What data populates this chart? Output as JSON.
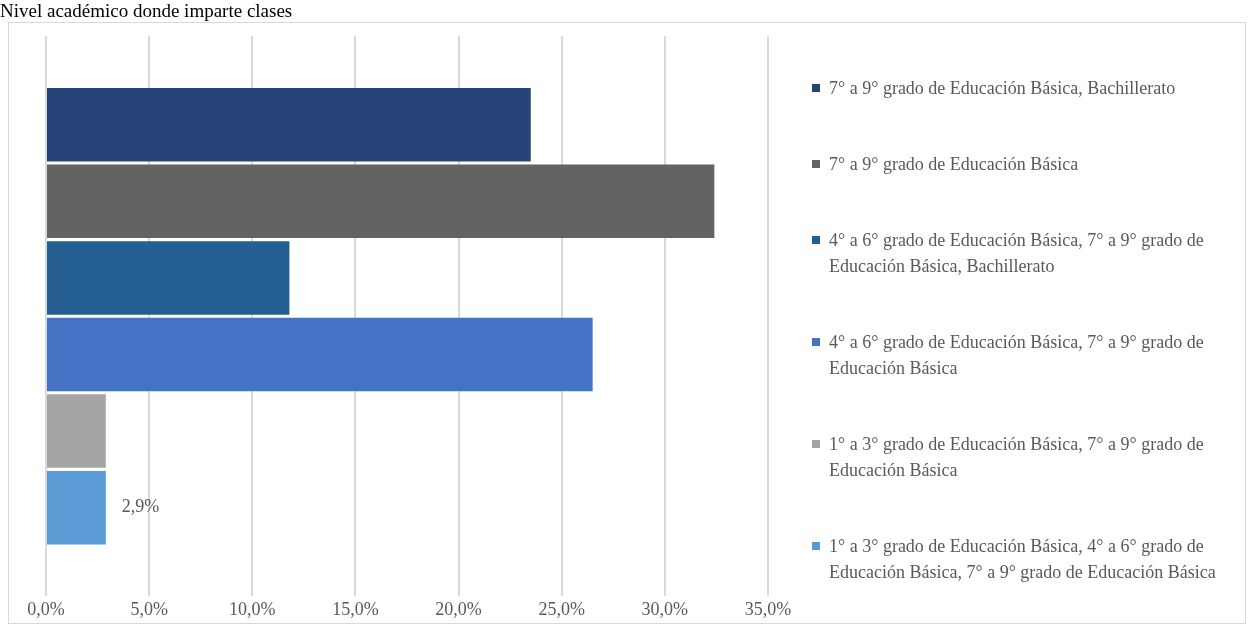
{
  "chart_data": {
    "type": "bar",
    "title": "Nivel académico donde imparte clases",
    "orientation": "horizontal",
    "categories": [
      null
    ],
    "series": [
      {
        "name": "7° a 9° grado de Educación Básica, Bachillerato",
        "color": "#264478",
        "values": [
          23.5
        ]
      },
      {
        "name": "7° a 9° grado de Educación Básica",
        "color": "#636363",
        "values": [
          32.4
        ]
      },
      {
        "name": "4° a 6° grado de Educación Básica, 7° a 9° grado de Educación Básica, Bachillerato",
        "color": "#255e91",
        "values": [
          11.8
        ]
      },
      {
        "name": "4° a 6° grado de Educación Básica, 7° a 9° grado de Educación Básica",
        "color": "#4472c4",
        "values": [
          26.5
        ]
      },
      {
        "name": "1° a 3° grado de Educación Básica, 7° a 9° grado de Educación Básica",
        "color": "#a5a5a5",
        "values": [
          2.9
        ]
      },
      {
        "name": "1° a 3° grado de Educación Básica, 4° a 6° grado de Educación Básica, 7° a 9° grado de Educación Básica",
        "color": "#5b9bd5",
        "values": [
          2.9
        ],
        "value_labels": [
          "2,9%"
        ]
      }
    ],
    "xlim": [
      0,
      35
    ],
    "xticks": [
      {
        "value": 0,
        "label": "0,0%"
      },
      {
        "value": 5,
        "label": "5,0%"
      },
      {
        "value": 10,
        "label": "10,0%"
      },
      {
        "value": 15,
        "label": "15,0%"
      },
      {
        "value": 20,
        "label": "20,0%"
      },
      {
        "value": 25,
        "label": "25,0%"
      },
      {
        "value": 30,
        "label": "30,0%"
      },
      {
        "value": 35,
        "label": "35,0%"
      }
    ],
    "grid": "x",
    "legend": "right"
  }
}
